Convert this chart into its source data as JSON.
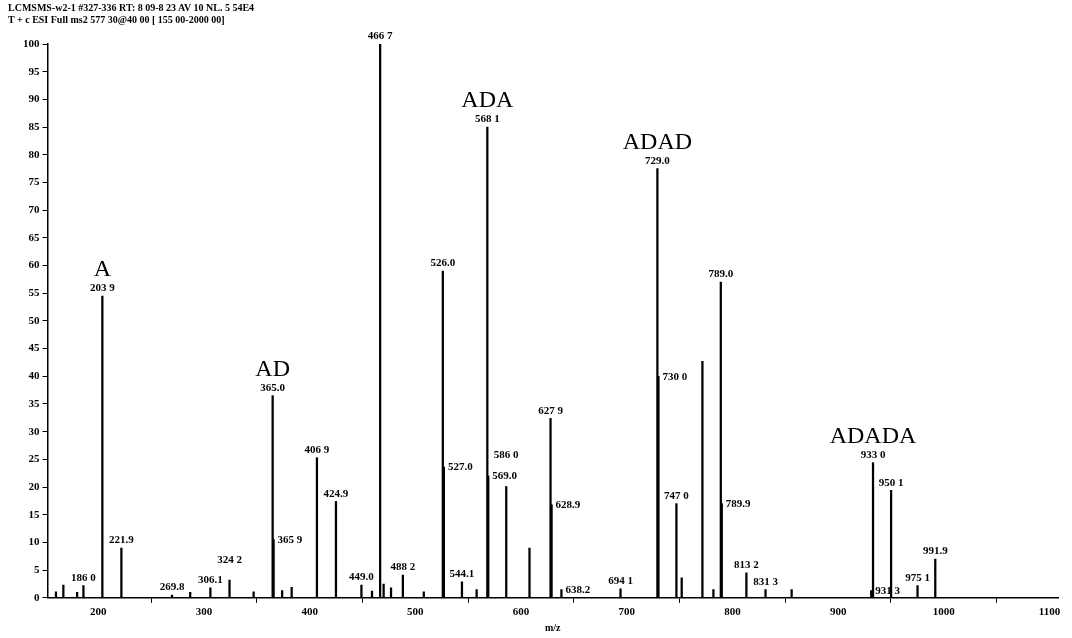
{
  "chart_data": {
    "type": "bar",
    "title": "LCMSMS-w2-1 #327-336  RT: 8 09-8 23  AV  10  NL. 5 54E4",
    "subtitle": "T  + c ESI Full ms2 577 30@40 00 [ 155 00-2000 00]",
    "xlabel": "m/z",
    "x": [
      160,
      167,
      180,
      186.0,
      203.9,
      221.9,
      269.8,
      287,
      306.1,
      324.2,
      347,
      365.0,
      365.9,
      374,
      383,
      406.9,
      424.9,
      449.0,
      459,
      466.7,
      470,
      477,
      488.2,
      508,
      526.0,
      527.0,
      544.1,
      558,
      568.1,
      569.0,
      586.0,
      608,
      627.9,
      628.9,
      638.2,
      694.1,
      729.0,
      730.0,
      747.0,
      752,
      771.6,
      782,
      789.0,
      789.9,
      813.2,
      831.3,
      856,
      931.3,
      933.0,
      950.1,
      975.1,
      991.9
    ],
    "values": [
      1.1,
      2.3,
      1.0,
      2.2,
      54.5,
      9,
      0.5,
      1.0,
      1.8,
      3.2,
      1.1,
      36.5,
      10.5,
      1.3,
      1.9,
      25.3,
      17.4,
      2.3,
      1.2,
      100,
      2.5,
      1.8,
      4.1,
      1.1,
      59,
      23.6,
      2.9,
      1.5,
      85,
      22,
      20.1,
      9,
      32.4,
      16.8,
      1.5,
      1.6,
      77.5,
      40,
      17,
      3.6,
      42.7,
      1.5,
      57,
      17,
      4.5,
      1.5,
      1.5,
      1.3,
      24.4,
      19.4,
      2.2,
      7
    ],
    "color": "#000000",
    "xlim": [
      152,
      1108
    ],
    "xticks": [
      200,
      300,
      400,
      500,
      600,
      700,
      800,
      900,
      1000,
      1100
    ],
    "ylim": [
      0,
      100
    ],
    "yticks": [
      0,
      5,
      10,
      15,
      20,
      25,
      30,
      35,
      40,
      45,
      50,
      55,
      60,
      65,
      70,
      75,
      80,
      85,
      90,
      95,
      100
    ],
    "grid": false,
    "legend": false,
    "annotations": [
      {
        "text": "186 0",
        "x": 186.0,
        "y": 2.2
      },
      {
        "text": "203 9",
        "x": 203.9,
        "y": 54.5
      },
      {
        "text": "A",
        "x": 203.9,
        "y": 54.5
      },
      {
        "text": "221.9",
        "x": 221.9,
        "y": 9
      },
      {
        "text": "269.8",
        "x": 269.8,
        "y": 0.5
      },
      {
        "text": "306.1",
        "x": 306.1,
        "y": 1.8
      },
      {
        "text": "324 2",
        "x": 324.2,
        "y": 3.2
      },
      {
        "text": "365.0",
        "x": 365.0,
        "y": 36.5
      },
      {
        "text": "AD",
        "x": 365.0,
        "y": 36.5
      },
      {
        "text": "365 9",
        "x": 365.9,
        "y": 10.5
      },
      {
        "text": "406 9",
        "x": 406.9,
        "y": 25.3
      },
      {
        "text": "424.9",
        "x": 424.9,
        "y": 17.4
      },
      {
        "text": "449.0",
        "x": 449.0,
        "y": 2.3
      },
      {
        "text": "466 7",
        "x": 466.7,
        "y": 100
      },
      {
        "text": "488 2",
        "x": 488.2,
        "y": 4.1
      },
      {
        "text": "526.0",
        "x": 526.0,
        "y": 59
      },
      {
        "text": "527.0",
        "x": 527.0,
        "y": 23.6
      },
      {
        "text": "544.1",
        "x": 544.1,
        "y": 2.9
      },
      {
        "text": "568 1",
        "x": 568.1,
        "y": 85
      },
      {
        "text": "ADA",
        "x": 568.1,
        "y": 85
      },
      {
        "text": "569.0",
        "x": 569.0,
        "y": 22
      },
      {
        "text": "586 0",
        "x": 586.0,
        "y": 20.1
      },
      {
        "text": "627 9",
        "x": 627.9,
        "y": 32.4
      },
      {
        "text": "628.9",
        "x": 628.9,
        "y": 16.8
      },
      {
        "text": "638.2",
        "x": 638.2,
        "y": 1.5
      },
      {
        "text": "694 1",
        "x": 694.1,
        "y": 1.6
      },
      {
        "text": "729.0",
        "x": 729.0,
        "y": 77.5
      },
      {
        "text": "ADAD",
        "x": 729.0,
        "y": 77.5
      },
      {
        "text": "730 0",
        "x": 730.0,
        "y": 40
      },
      {
        "text": "747 0",
        "x": 747.0,
        "y": 17
      },
      {
        "text": "789.0",
        "x": 789.0,
        "y": 57
      },
      {
        "text": "789.9",
        "x": 789.9,
        "y": 17
      },
      {
        "text": "813 2",
        "x": 813.2,
        "y": 4.5
      },
      {
        "text": "831 3",
        "x": 831.3,
        "y": 1.5
      },
      {
        "text": "931 3",
        "x": 931.3,
        "y": 1.3
      },
      {
        "text": "933 0",
        "x": 933.0,
        "y": 24.4
      },
      {
        "text": "ADADA",
        "x": 933.0,
        "y": 24.4
      },
      {
        "text": "950 1",
        "x": 950.1,
        "y": 19.4
      },
      {
        "text": "975 1",
        "x": 975.1,
        "y": 2.2
      },
      {
        "text": "991.9",
        "x": 991.9,
        "y": 7
      }
    ]
  }
}
